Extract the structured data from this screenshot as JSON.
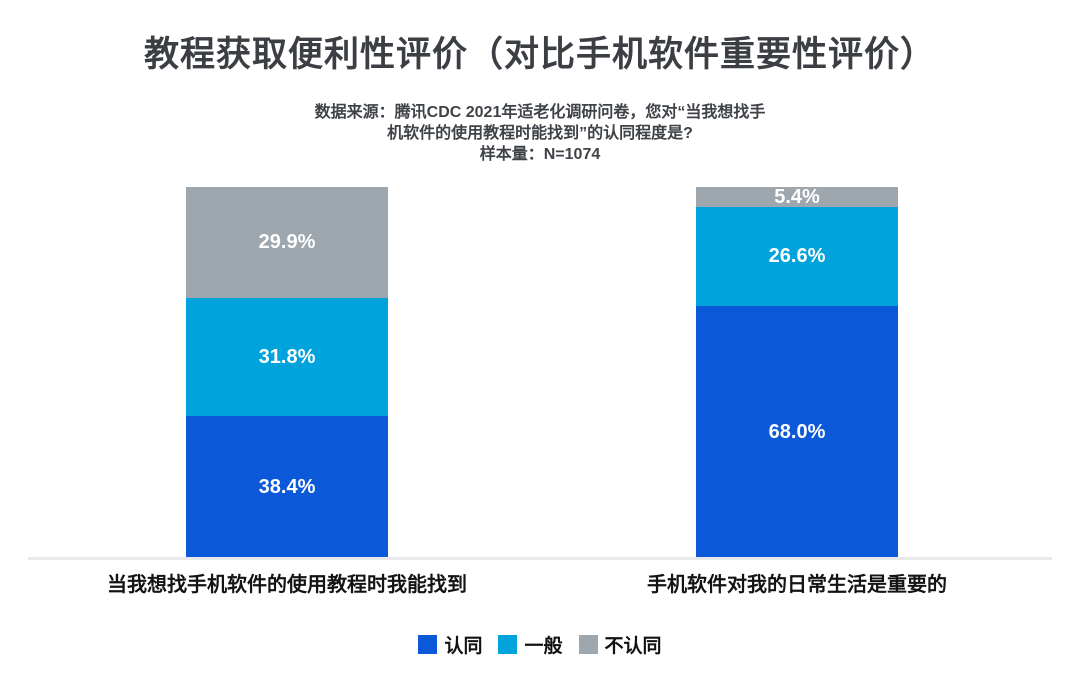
{
  "title": "教程获取便利性评价（对比手机软件重要性评价）",
  "subtitle": {
    "line1": "数据来源：腾讯CDC 2021年适老化调研问卷，您对“当我想找手",
    "line2": "机软件的使用教程时能找到”的认同程度是?",
    "line3": "样本量：N=1074"
  },
  "chart_data": {
    "type": "bar",
    "subtype": "stacked-percentage-column",
    "categories": [
      "当我想找手机软件的使用教程时我能找到",
      "手机软件对我的日常生活是重要的"
    ],
    "series": [
      {
        "name": "认同",
        "color": "#0b58d8",
        "values": [
          38.4,
          68.0
        ]
      },
      {
        "name": "一般",
        "color": "#00a3dc",
        "values": [
          31.8,
          26.6
        ]
      },
      {
        "name": "不认同",
        "color": "#9ea6ae",
        "values": [
          29.9,
          5.4
        ]
      }
    ],
    "value_suffix": "%",
    "value_label_color": "#ffffff",
    "ylim": [
      0,
      100
    ],
    "grid": false,
    "legend_position": "bottom",
    "stack_order_bottom_to_top": [
      "认同",
      "一般",
      "不认同"
    ]
  },
  "colors": {
    "background": "#ffffff",
    "title_text": "#3b3e42",
    "subtitle_text": "#3f4348",
    "axis_line": "#e8e9ea",
    "category_text": "#141414",
    "legend_text": "#111111"
  }
}
